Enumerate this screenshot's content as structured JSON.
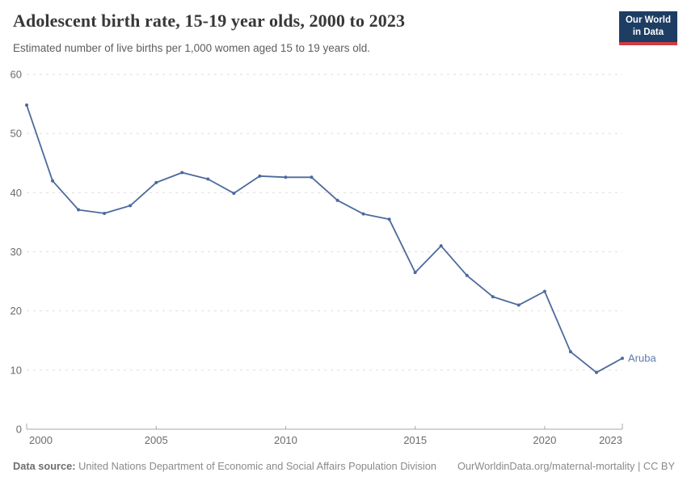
{
  "header": {
    "title": "Adolescent birth rate, 15-19 year olds, 2000 to 2023",
    "subtitle": "Estimated number of live births per 1,000 women aged 15 to 19 years old.",
    "logo": {
      "line1": "Our World",
      "line2": "in Data"
    }
  },
  "chart_data": {
    "type": "line",
    "title": "Adolescent birth rate, 15-19 year olds, 2000 to 2023",
    "xlabel": "",
    "ylabel": "Estimated number of live births per 1,000 women aged 15 to 19 years old",
    "xlim": [
      2000,
      2023
    ],
    "ylim": [
      0,
      60
    ],
    "xticks": [
      2000,
      2005,
      2010,
      2015,
      2020,
      2023
    ],
    "yticks": [
      0,
      10,
      20,
      30,
      40,
      50,
      60
    ],
    "grid": true,
    "legend_position": "end-of-line-label",
    "line_color": "#4c6a9c",
    "series_label_color": "#5b7cae",
    "series": [
      {
        "name": "Aruba",
        "x": [
          2000,
          2001,
          2002,
          2003,
          2004,
          2005,
          2006,
          2007,
          2008,
          2009,
          2010,
          2011,
          2012,
          2013,
          2014,
          2015,
          2016,
          2017,
          2018,
          2019,
          2020,
          2021,
          2022,
          2023
        ],
        "values": [
          54.8,
          42.0,
          37.1,
          36.5,
          37.8,
          41.7,
          43.4,
          42.3,
          39.9,
          42.8,
          42.6,
          42.6,
          38.7,
          36.4,
          35.5,
          26.5,
          31.0,
          26.0,
          22.4,
          21.0,
          23.3,
          13.1,
          9.6,
          12.0
        ]
      }
    ]
  },
  "footer": {
    "source_label": "Data source:",
    "source_text": " United Nations Department of Economic and Social Affairs Population Division",
    "credit": "OurWorldinData.org/maternal-mortality | CC BY"
  }
}
